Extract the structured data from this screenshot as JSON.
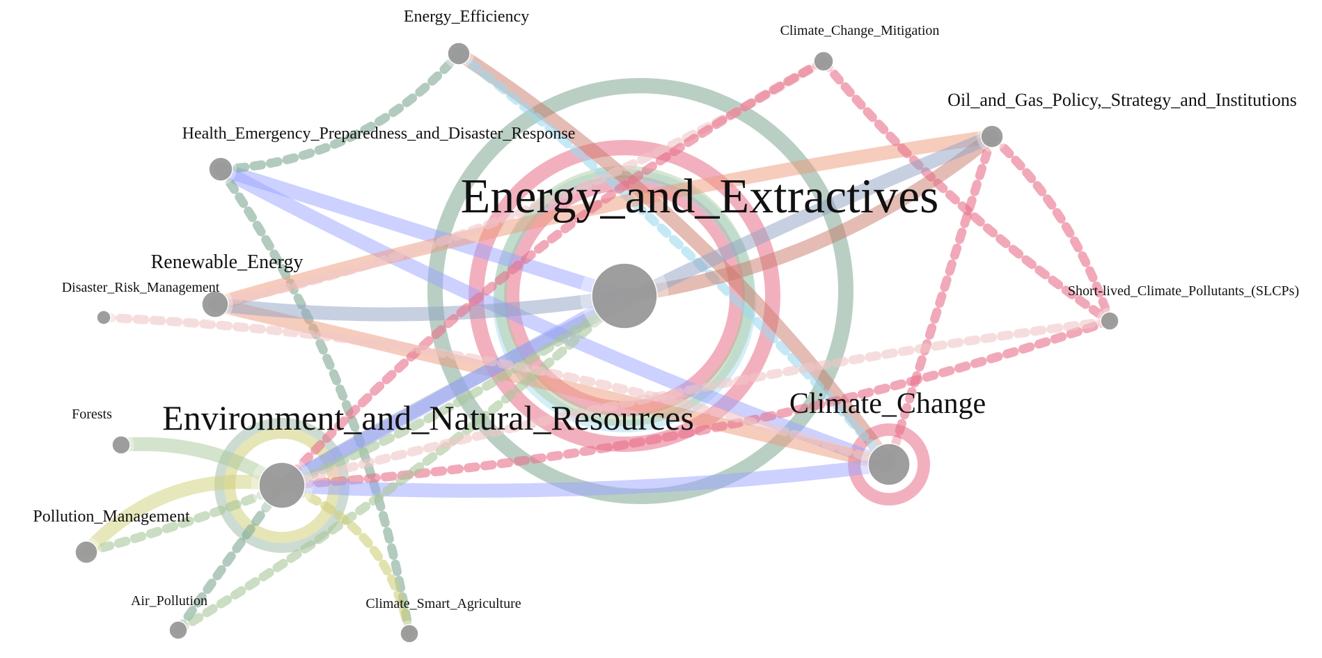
{
  "nodes": [
    {
      "id": "energy_extractives",
      "label": "Energy_and_Extractives",
      "size": "xl"
    },
    {
      "id": "environment",
      "label": "Environment_and_Natural_Resources",
      "size": "lg"
    },
    {
      "id": "climate_change",
      "label": "Climate_Change",
      "size": "lg"
    },
    {
      "id": "energy_efficiency",
      "label": "Energy_Efficiency",
      "size": "sm"
    },
    {
      "id": "cc_mitigation",
      "label": "Climate_Change_Mitigation",
      "size": "xs"
    },
    {
      "id": "oil_gas",
      "label": "Oil_and_Gas_Policy,_Strategy_and_Institutions",
      "size": "sm"
    },
    {
      "id": "health_emergency",
      "label": "Health_Emergency_Preparedness_and_Disaster_Response",
      "size": "sm"
    },
    {
      "id": "renewable",
      "label": "Renewable_Energy",
      "size": "md"
    },
    {
      "id": "disaster_risk",
      "label": "Disaster_Risk_Management",
      "size": "xs"
    },
    {
      "id": "slcp",
      "label": "Short-lived_Climate_Pollutants_(SLCPs)",
      "size": "xs"
    },
    {
      "id": "forests",
      "label": "Forests",
      "size": "xs"
    },
    {
      "id": "pollution",
      "label": "Pollution_Management",
      "size": "sm"
    },
    {
      "id": "air_pollution",
      "label": "Air_Pollution",
      "size": "xs"
    },
    {
      "id": "csa",
      "label": "Climate_Smart_Agriculture",
      "size": "xs"
    }
  ],
  "colors": {
    "node_fill": "#999999",
    "red": "#e8708a",
    "salmon": "#ee9a7c",
    "brown": "#c97a6a",
    "sage": "#7fa892",
    "blue": "#9aa4ff",
    "steel": "#8fa2c4",
    "sky": "#9fd8ee",
    "olive": "#cfcf7a",
    "lightgreen": "#a9c79a",
    "pink": "#f0c6c6"
  },
  "edges": [
    {
      "from": "energy_efficiency",
      "to": "climate_change",
      "color": "brown",
      "style": "solid"
    },
    {
      "from": "energy_efficiency",
      "to": "climate_change",
      "color": "sky",
      "style": "dashed"
    },
    {
      "from": "health_emergency",
      "to": "energy_extractives",
      "color": "blue",
      "style": "solid"
    },
    {
      "from": "health_emergency",
      "to": "climate_change",
      "color": "blue",
      "style": "solid"
    },
    {
      "from": "health_emergency",
      "to": "energy_efficiency",
      "color": "sage",
      "style": "dashed"
    },
    {
      "from": "health_emergency",
      "to": "csa",
      "color": "sage",
      "style": "dashed"
    },
    {
      "from": "renewable",
      "to": "oil_gas",
      "color": "salmon",
      "style": "solid"
    },
    {
      "from": "renewable",
      "to": "climate_change",
      "color": "salmon",
      "style": "solid"
    },
    {
      "from": "renewable",
      "to": "energy_extractives",
      "color": "steel",
      "style": "solid"
    },
    {
      "from": "renewable",
      "to": "cc_mitigation",
      "color": "pink",
      "style": "dashed"
    },
    {
      "from": "oil_gas",
      "to": "energy_extractives",
      "color": "brown",
      "style": "solid"
    },
    {
      "from": "oil_gas",
      "to": "slcp",
      "color": "red",
      "style": "dashed"
    },
    {
      "from": "oil_gas",
      "to": "climate_change",
      "color": "red",
      "style": "dashed"
    },
    {
      "from": "cc_mitigation",
      "to": "slcp",
      "color": "red",
      "style": "dashed"
    },
    {
      "from": "cc_mitigation",
      "to": "environment",
      "color": "red",
      "style": "dashed"
    },
    {
      "from": "slcp",
      "to": "environment",
      "color": "red",
      "style": "dashed"
    },
    {
      "from": "environment",
      "to": "oil_gas",
      "color": "steel",
      "style": "solid"
    },
    {
      "from": "environment",
      "to": "energy_extractives",
      "color": "blue",
      "style": "solid"
    },
    {
      "from": "environment",
      "to": "climate_change",
      "color": "blue",
      "style": "solid"
    },
    {
      "from": "pollution",
      "to": "energy_extractives",
      "color": "lightgreen",
      "style": "dashed"
    },
    {
      "from": "pollution",
      "to": "environment",
      "color": "olive",
      "style": "solid"
    },
    {
      "from": "forests",
      "to": "environment",
      "color": "lightgreen",
      "style": "solid"
    },
    {
      "from": "air_pollution",
      "to": "environment",
      "color": "sage",
      "style": "dashed"
    },
    {
      "from": "air_pollution",
      "to": "energy_extractives",
      "color": "lightgreen",
      "style": "dashed"
    },
    {
      "from": "csa",
      "to": "environment",
      "color": "olive",
      "style": "dashed"
    },
    {
      "from": "disaster_risk",
      "to": "climate_change",
      "color": "pink",
      "style": "dashed"
    },
    {
      "from": "environment",
      "to": "slcp",
      "color": "pink",
      "style": "dashed"
    }
  ]
}
